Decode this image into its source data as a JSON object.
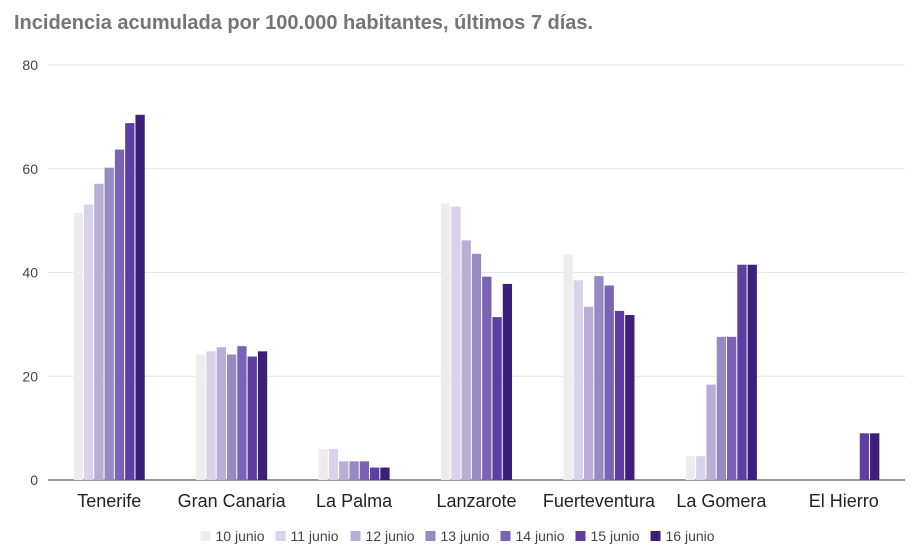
{
  "chart_data": {
    "type": "bar",
    "title": "Incidencia acumulada por 100.000 habitantes, últimos 7 días.",
    "categories": [
      "Tenerife",
      "Gran Canaria",
      "La Palma",
      "Lanzarote",
      "Fuerteventura",
      "La Gomera",
      "El Hierro"
    ],
    "ylim": [
      0,
      80
    ],
    "yticks": [
      0,
      20,
      40,
      60,
      80
    ],
    "grid": true,
    "legend_position": "bottom",
    "series": [
      {
        "name": "10 junio",
        "color": "#ededed",
        "values": [
          51.5,
          24.2,
          6.0,
          53.3,
          43.5,
          4.6,
          0
        ]
      },
      {
        "name": "11 junio",
        "color": "#d9d3e9",
        "values": [
          53.1,
          24.8,
          6.0,
          52.7,
          38.5,
          4.6,
          0
        ]
      },
      {
        "name": "12 junio",
        "color": "#b8aed6",
        "values": [
          57.1,
          25.6,
          3.6,
          46.2,
          33.4,
          18.4,
          0
        ]
      },
      {
        "name": "13 junio",
        "color": "#978ac2",
        "values": [
          60.2,
          24.2,
          3.6,
          43.6,
          39.3,
          27.6,
          0
        ]
      },
      {
        "name": "14 junio",
        "color": "#7a63b5",
        "values": [
          63.7,
          25.8,
          3.6,
          39.2,
          37.5,
          27.6,
          0
        ]
      },
      {
        "name": "15 junio",
        "color": "#5e3fa1",
        "values": [
          68.8,
          23.8,
          2.4,
          31.4,
          32.6,
          41.5,
          9.0
        ]
      },
      {
        "name": "16 junio",
        "color": "#3b1f78",
        "values": [
          70.4,
          24.8,
          2.4,
          37.8,
          31.8,
          41.5,
          9.0
        ]
      }
    ]
  }
}
